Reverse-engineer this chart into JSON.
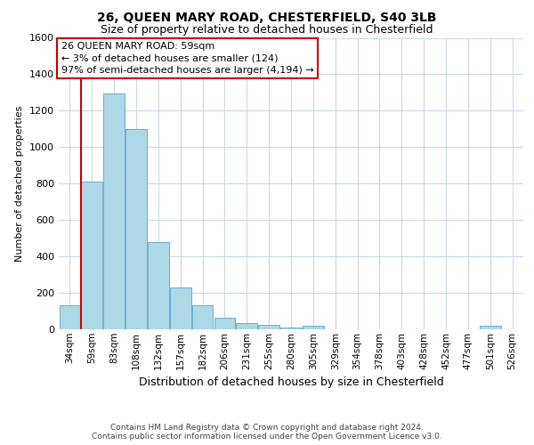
{
  "title": "26, QUEEN MARY ROAD, CHESTERFIELD, S40 3LB",
  "subtitle": "Size of property relative to detached houses in Chesterfield",
  "xlabel": "Distribution of detached houses by size in Chesterfield",
  "ylabel": "Number of detached properties",
  "footer_line1": "Contains HM Land Registry data © Crown copyright and database right 2024.",
  "footer_line2": "Contains public sector information licensed under the Open Government Licence v3.0.",
  "bar_labels": [
    "34sqm",
    "59sqm",
    "83sqm",
    "108sqm",
    "132sqm",
    "157sqm",
    "182sqm",
    "206sqm",
    "231sqm",
    "255sqm",
    "280sqm",
    "305sqm",
    "329sqm",
    "354sqm",
    "378sqm",
    "403sqm",
    "428sqm",
    "452sqm",
    "477sqm",
    "501sqm",
    "526sqm"
  ],
  "bar_values": [
    130,
    810,
    1295,
    1100,
    480,
    230,
    130,
    65,
    35,
    22,
    12,
    18,
    0,
    0,
    0,
    0,
    0,
    0,
    0,
    20,
    0
  ],
  "bar_color": "#add8e6",
  "bar_edge_color": "#6aafd4",
  "annotation_line1": "26 QUEEN MARY ROAD: 59sqm",
  "annotation_line2": "← 3% of detached houses are smaller (124)",
  "annotation_line3": "97% of semi-detached houses are larger (4,194) →",
  "red_line_bar_index": 1,
  "ylim": [
    0,
    1600
  ],
  "yticks": [
    0,
    200,
    400,
    600,
    800,
    1000,
    1200,
    1400,
    1600
  ],
  "background_color": "#ffffff",
  "grid_color": "#ccd8e8",
  "annotation_box_color": "#ffffff",
  "annotation_box_edge": "#cc0000",
  "red_line_color": "#cc0000",
  "title_fontsize": 10,
  "subtitle_fontsize": 9,
  "ylabel_fontsize": 8,
  "xlabel_fontsize": 9,
  "tick_fontsize": 7.5,
  "ytick_fontsize": 8,
  "footer_fontsize": 6.5,
  "annotation_fontsize": 8
}
